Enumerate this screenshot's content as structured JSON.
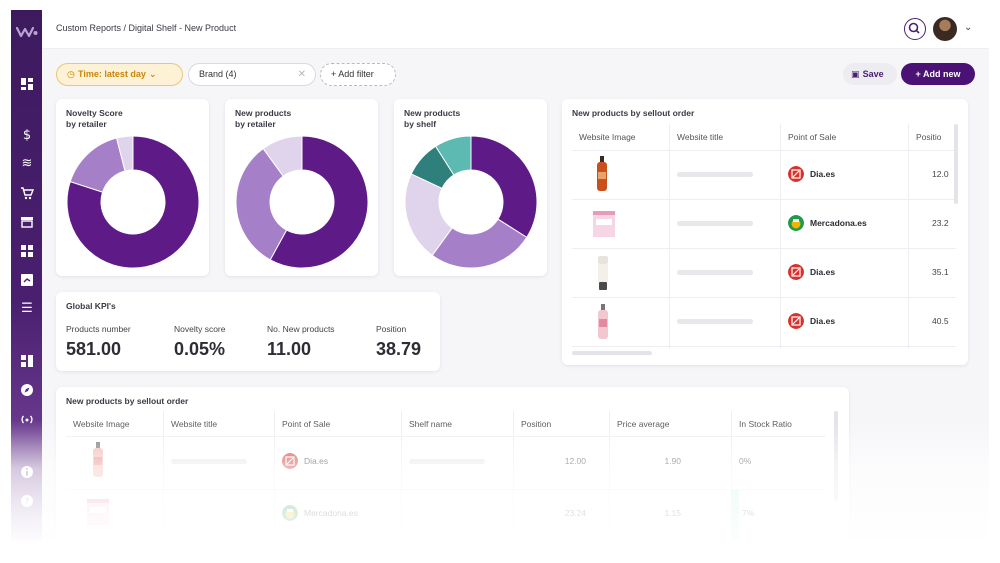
{
  "header": {
    "breadcrumb": "Custom Reports / Digital Shelf - New Product"
  },
  "sidebar": {
    "icons": [
      "dashboard-icon",
      "dollar-icon",
      "stack-icon",
      "cart-icon",
      "store-icon",
      "grid-icon",
      "report-icon",
      "list-icon",
      "widgets-icon",
      "compass-icon",
      "radar-icon",
      "info-icon",
      "help-icon"
    ]
  },
  "filters": {
    "time_label": "Time: latest day",
    "brand_label": "Brand (4)",
    "add_filter_label": "+ Add filter",
    "save_label": "Save",
    "add_new_label": "+ Add new"
  },
  "colors": {
    "accent": "#4a1275",
    "purple_dark": "#5e1a86",
    "purple_mid": "#a57fc8",
    "purple_light": "#e0d4ec",
    "teal": "#2f7f7c",
    "teal_light": "#5cbab3",
    "time_pill": "#c8860a"
  },
  "charts": {
    "novelty": {
      "title_line1": "Novelty Score",
      "title_line2": "by retailer"
    },
    "new_retailer": {
      "title_line1": "New products",
      "title_line2": "by retailer"
    },
    "new_shelf": {
      "title_line1": "New products",
      "title_line2": "by shelf"
    }
  },
  "chart_data": [
    {
      "type": "pie",
      "title": "Novelty Score by retailer",
      "values": [
        80,
        16,
        4
      ]
    },
    {
      "type": "pie",
      "title": "New products by retailer",
      "values": [
        58,
        32,
        10
      ]
    },
    {
      "type": "pie",
      "title": "New products by shelf",
      "values": [
        34,
        26,
        22,
        9,
        9
      ]
    }
  ],
  "kpi": {
    "title": "Global KPI's",
    "items": [
      {
        "label": "Products number",
        "value": "581.00"
      },
      {
        "label": "Novelty score",
        "value": "0.05%"
      },
      {
        "label": "No. New products",
        "value": "11.00"
      },
      {
        "label": "Position",
        "value": "38.79"
      }
    ]
  },
  "table_right": {
    "title": "New products by sellout order",
    "columns": [
      "Website Image",
      "Website title",
      "Point of Sale",
      "Positio"
    ],
    "rows": [
      {
        "pos": "Dia.es",
        "position": "12.0"
      },
      {
        "pos": "Mercadona.es",
        "position": "23.2"
      },
      {
        "pos": "Dia.es",
        "position": "35.1"
      },
      {
        "pos": "Dia.es",
        "position": "40.5"
      }
    ]
  },
  "table_bottom": {
    "title": "New products by sellout order",
    "columns": [
      "Website Image",
      "Website title",
      "Point of Sale",
      "Shelf name",
      "Position",
      "Price average",
      "In Stock Ratio"
    ],
    "rows": [
      {
        "pos": "Dia.es",
        "position": "12.00",
        "price": "1.90",
        "stock": "0%"
      },
      {
        "pos": "Mercadona.es",
        "position": "23.24",
        "price": "1.15",
        "stock": "7%"
      }
    ]
  }
}
